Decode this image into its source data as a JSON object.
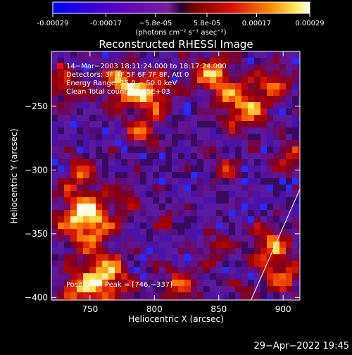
{
  "colorbar": {
    "tick_labels": [
      "-0.00029",
      "-0.00017",
      "−5.8e-05",
      "5.8e-05",
      "0.00017",
      "0.00029"
    ],
    "tick_values": [
      -0.00029,
      -0.00017,
      -5.8e-05,
      5.8e-05,
      0.00017,
      0.00029
    ],
    "units_label": "(photons cm⁻² s⁻¹ asec⁻²)",
    "range": [
      -0.00029,
      0.00029
    ]
  },
  "chart_data": {
    "type": "heatmap",
    "title": "Reconstructed RHESSI Image",
    "xlabel": "Heliocentric X (arcsec)",
    "ylabel": "Heliocentric Y (arcsec)",
    "xlim": [
      720,
      913
    ],
    "ylim": [
      -402,
      -207
    ],
    "x_ticks": [
      750,
      800,
      850,
      900
    ],
    "y_ticks": [
      -250,
      -300,
      -350,
      -400
    ],
    "colormap": "RHESSI blue-purple-red-yellow-white",
    "info_lines": [
      "14−Mar−2003 18:11:24.000 to 18:17:24.000",
      "Detectors: 3F 4F 5F 6F 7F 8F, Att 0",
      "Energy Range: 25.0 − 50.0 keV",
      "Clean     Total counts: 5.95E+03"
    ],
    "peak_label": "Position of Peak = [746,−337]",
    "peak_position": [
      746,
      -337
    ],
    "limb_line": [
      [
        875,
        -402
      ],
      [
        913,
        -315
      ]
    ]
  },
  "footer": {
    "timestamp": "29−Apr−2022 19:45"
  }
}
